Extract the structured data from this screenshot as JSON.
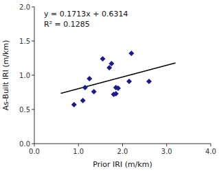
{
  "chart_data": {
    "type": "scatter",
    "xlabel": "Prior IRI (m/km)",
    "ylabel": "As-Built IRI (m/km)",
    "xlim": [
      0.0,
      4.0
    ],
    "ylim": [
      0.0,
      2.0
    ],
    "xticks": [
      {
        "value": 0.0,
        "label": "0.0"
      },
      {
        "value": 1.0,
        "label": "1.0"
      },
      {
        "value": 2.0,
        "label": "2.0"
      },
      {
        "value": 3.0,
        "label": "3.0"
      },
      {
        "value": 4.0,
        "label": "4.0"
      }
    ],
    "yticks": [
      {
        "value": 0.0,
        "label": "0.0"
      },
      0.5,
      {
        "value": 1.0,
        "label": "1.0"
      },
      1.5,
      {
        "value": 2.0,
        "label": "2.0"
      }
    ],
    "grid": false,
    "annotations": [
      "y = 0.1713x + 0.6314",
      "R² = 0.1285"
    ],
    "series": [
      {
        "type": "scatter",
        "color": "#1a1a8c",
        "marker": "diamond",
        "x": [
          0.9,
          1.1,
          1.15,
          1.25,
          1.35,
          1.55,
          1.7,
          1.75,
          1.8,
          1.85,
          1.85,
          1.9,
          2.15,
          2.2,
          2.6
        ],
        "values": [
          0.57,
          0.63,
          0.82,
          0.95,
          0.76,
          1.24,
          1.11,
          1.17,
          0.72,
          0.73,
          0.82,
          0.81,
          0.91,
          1.32,
          0.91
        ]
      },
      {
        "type": "line",
        "color": "#000000",
        "x": [
          0.6,
          3.2
        ],
        "values": [
          0.73418,
          1.17956
        ]
      }
    ]
  }
}
